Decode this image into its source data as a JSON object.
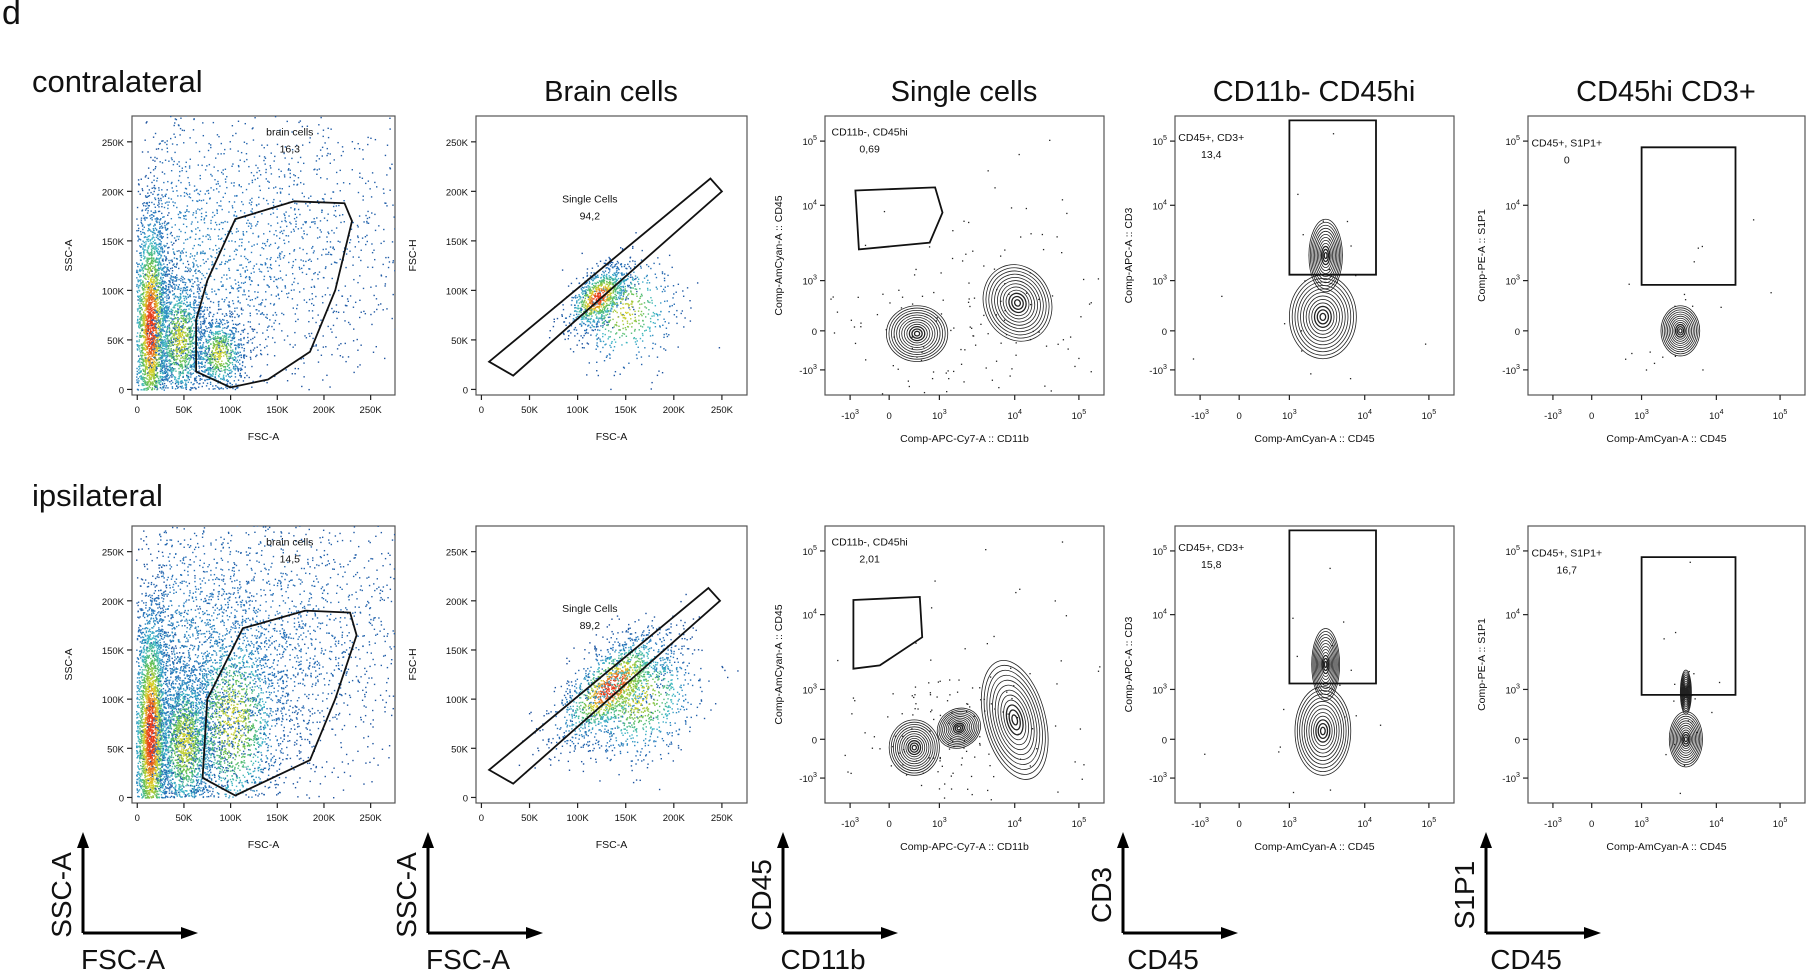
{
  "panel_letter": "d",
  "column_titles": [
    "",
    "Brain cells",
    "Single cells",
    "CD11b- CD45hi",
    "CD45hi CD3+"
  ],
  "chart_data": [
    {
      "type": "scatter",
      "row": "contralateral",
      "panels": [
        {
          "title": "",
          "xlabel": "FSC-A",
          "ylabel": "SSC-A",
          "xscale": "linear",
          "yscale": "linear",
          "style": "pseudocolor",
          "xticks": [
            "0",
            "50K",
            "100K",
            "150K",
            "200K",
            "250K"
          ],
          "yticks": [
            "0",
            "50K",
            "100K",
            "150K",
            "200K",
            "250K"
          ],
          "gate": {
            "name": "brain cells",
            "value": "16,3",
            "shape": "polygon",
            "vertices": [
              [
                100000,
                2000
              ],
              [
                140000,
                10000
              ],
              [
                185000,
                38000
              ],
              [
                212000,
                100000
              ],
              [
                230000,
                170000
              ],
              [
                222000,
                188000
              ],
              [
                168000,
                190000
              ],
              [
                105000,
                172000
              ],
              [
                75000,
                110000
              ],
              [
                63000,
                70000
              ],
              [
                63000,
                18000
              ]
            ]
          }
        },
        {
          "title": "Brain cells",
          "xlabel": "FSC-A",
          "ylabel": "FSC-H",
          "xscale": "linear",
          "yscale": "linear",
          "style": "pseudocolor",
          "xticks": [
            "0",
            "50K",
            "100K",
            "150K",
            "200K",
            "250K"
          ],
          "yticks": [
            "0",
            "50K",
            "100K",
            "150K",
            "200K",
            "250K"
          ],
          "gate": {
            "name": "Single Cells",
            "value": "94,2",
            "shape": "polygon",
            "vertices": [
              [
                8000,
                28000
              ],
              [
                33000,
                14000
              ],
              [
                250000,
                200000
              ],
              [
                238000,
                213000
              ]
            ]
          }
        },
        {
          "title": "Single cells",
          "xlabel": "Comp-APC-Cy7-A :: CD11b",
          "ylabel": "Comp-AmCyan-A :: CD45",
          "xscale": "biexponential",
          "yscale": "biexponential",
          "style": "contour",
          "xticks": [
            "-10^3",
            "0",
            "10^3",
            "10^4",
            "10^5"
          ],
          "yticks": [
            "-10^3",
            "0",
            "10^3",
            "10^4",
            "10^5"
          ],
          "gate": {
            "name": "CD11b-, CD45hi",
            "value": "0,69",
            "shape": "polygon",
            "vertices": [
              [
                -700,
                17000
              ],
              [
                800,
                19000
              ],
              [
                1100,
                8000
              ],
              [
                600,
                3200
              ],
              [
                -550,
                2600
              ]
            ]
          }
        },
        {
          "title": "CD11b- CD45hi",
          "xlabel": "Comp-AmCyan-A :: CD45",
          "ylabel": "Comp-APC-A :: CD3",
          "xscale": "biexponential",
          "yscale": "biexponential",
          "style": "contour",
          "xticks": [
            "-10^3",
            "0",
            "10^3",
            "10^4",
            "10^5"
          ],
          "yticks": [
            "-10^3",
            "0",
            "10^3",
            "10^4",
            "10^5"
          ],
          "gate": {
            "name": "CD45+, CD3+",
            "value": "13,4",
            "shape": "rectangle",
            "vertices": [
              [
                1000,
                1200
              ],
              [
                15000,
                1200
              ],
              [
                15000,
                210000
              ],
              [
                1000,
                210000
              ]
            ]
          }
        },
        {
          "title": "CD45hi CD3+",
          "xlabel": "Comp-AmCyan-A :: CD45",
          "ylabel": "Comp-PE-A :: S1P1",
          "xscale": "biexponential",
          "yscale": "biexponential",
          "style": "contour",
          "xticks": [
            "-10^3",
            "0",
            "10^3",
            "10^4",
            "10^5"
          ],
          "yticks": [
            "-10^3",
            "0",
            "10^3",
            "10^4",
            "10^5"
          ],
          "gate": {
            "name": "CD45+, S1P1+",
            "value": "0",
            "shape": "rectangle",
            "vertices": [
              [
                1000,
                800
              ],
              [
                20000,
                800
              ],
              [
                20000,
                80000
              ],
              [
                1000,
                80000
              ]
            ]
          }
        }
      ]
    },
    {
      "type": "scatter",
      "row": "ipsilateral",
      "panels": [
        {
          "title": "",
          "xlabel": "FSC-A",
          "ylabel": "SSC-A",
          "xscale": "linear",
          "yscale": "linear",
          "style": "pseudocolor",
          "xticks": [
            "0",
            "50K",
            "100K",
            "150K",
            "200K",
            "250K"
          ],
          "yticks": [
            "0",
            "50K",
            "100K",
            "150K",
            "200K",
            "250K"
          ],
          "gate": {
            "name": "brain cells",
            "value": "14,5",
            "shape": "polygon",
            "vertices": [
              [
                105000,
                2000
              ],
              [
                185000,
                38000
              ],
              [
                212000,
                100000
              ],
              [
                235000,
                165000
              ],
              [
                228000,
                188000
              ],
              [
                180000,
                190000
              ],
              [
                113000,
                172000
              ],
              [
                75000,
                100000
              ],
              [
                70000,
                20000
              ]
            ]
          }
        },
        {
          "title": "Brain cells",
          "xlabel": "FSC-A",
          "ylabel": "FSC-H",
          "xscale": "linear",
          "yscale": "linear",
          "style": "pseudocolor",
          "xticks": [
            "0",
            "50K",
            "100K",
            "150K",
            "200K",
            "250K"
          ],
          "yticks": [
            "0",
            "50K",
            "100K",
            "150K",
            "200K",
            "250K"
          ],
          "gate": {
            "name": "Single Cells",
            "value": "89,2",
            "shape": "polygon",
            "vertices": [
              [
                8000,
                28000
              ],
              [
                33000,
                14000
              ],
              [
                248000,
                200000
              ],
              [
                236000,
                213000
              ]
            ]
          }
        },
        {
          "title": "Single cells",
          "xlabel": "Comp-APC-Cy7-A :: CD11b",
          "ylabel": "Comp-AmCyan-A :: CD45",
          "xscale": "biexponential",
          "yscale": "biexponential",
          "style": "contour",
          "xticks": [
            "-10^3",
            "0",
            "10^3",
            "10^4",
            "10^5"
          ],
          "yticks": [
            "-10^3",
            "0",
            "10^3",
            "10^4",
            "10^5"
          ],
          "gate": {
            "name": "CD11b-, CD45hi",
            "value": "2,01",
            "shape": "polygon",
            "vertices": [
              [
                -800,
                17000
              ],
              [
                350,
                19000
              ],
              [
                400,
                5000
              ],
              [
                -100,
                2100
              ],
              [
                -800,
                1900
              ]
            ]
          }
        },
        {
          "title": "CD11b- CD45hi",
          "xlabel": "Comp-AmCyan-A :: CD45",
          "ylabel": "Comp-APC-A :: CD3",
          "xscale": "biexponential",
          "yscale": "biexponential",
          "style": "contour",
          "xticks": [
            "-10^3",
            "0",
            "10^3",
            "10^4",
            "10^5"
          ],
          "yticks": [
            "-10^3",
            "0",
            "10^3",
            "10^4",
            "10^5"
          ],
          "gate": {
            "name": "CD45+, CD3+",
            "value": "15,8",
            "shape": "rectangle",
            "vertices": [
              [
                1000,
                1200
              ],
              [
                15000,
                1200
              ],
              [
                15000,
                210000
              ],
              [
                1000,
                210000
              ]
            ]
          }
        },
        {
          "title": "CD45hi CD3+",
          "xlabel": "Comp-AmCyan-A :: CD45",
          "ylabel": "Comp-PE-A :: S1P1",
          "xscale": "biexponential",
          "yscale": "biexponential",
          "style": "contour",
          "xticks": [
            "-10^3",
            "0",
            "10^3",
            "10^4",
            "10^5"
          ],
          "yticks": [
            "-10^3",
            "0",
            "10^3",
            "10^4",
            "10^5"
          ],
          "gate": {
            "name": "CD45+, S1P1+",
            "value": "16,7",
            "shape": "rectangle",
            "vertices": [
              [
                1000,
                750
              ],
              [
                20000,
                750
              ],
              [
                20000,
                80000
              ],
              [
                1000,
                80000
              ]
            ]
          }
        }
      ]
    }
  ],
  "axis_legends": [
    {
      "y": "SSC-A",
      "x": "FSC-A"
    },
    {
      "y": "SSC-A",
      "x": "FSC-A"
    },
    {
      "y": "CD45",
      "x": "CD11b"
    },
    {
      "y": "CD3",
      "x": "CD45"
    },
    {
      "y": "S1P1",
      "x": "CD45"
    }
  ],
  "colors": {
    "axes": "#222222",
    "gate": "#111111",
    "low_density": "#1c4f9c",
    "mid_density": "#3fb8c8",
    "high_density": "#e83a1a"
  }
}
